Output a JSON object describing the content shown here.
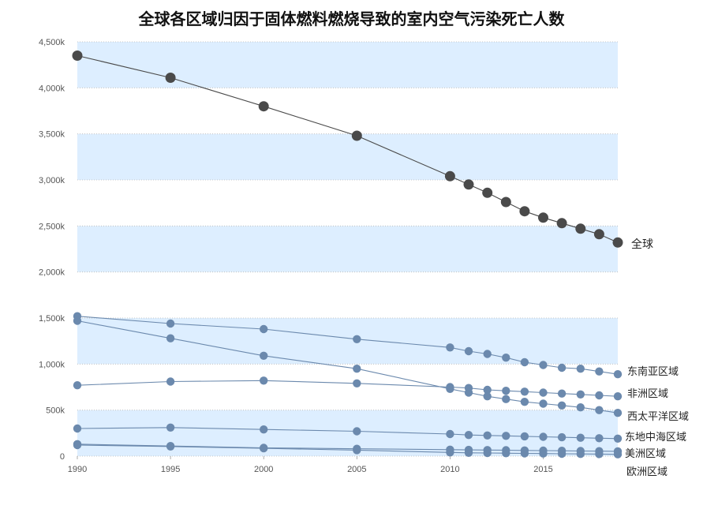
{
  "chart_data": {
    "type": "line",
    "title": "全球各区域归因于固体燃料燃烧导致的室内空气污染死亡人数",
    "xlabel": "",
    "ylabel": "",
    "x": [
      1990,
      1995,
      2000,
      2005,
      2010,
      2011,
      2012,
      2013,
      2014,
      2015,
      2016,
      2017,
      2018,
      2019
    ],
    "xticks": [
      1990,
      1995,
      2000,
      2005,
      2010,
      2015
    ],
    "xtick_labels": [
      "1990",
      "1995",
      "2000",
      "2005",
      "2010",
      "2015"
    ],
    "xlim": [
      1990,
      2019
    ],
    "ylim": [
      0,
      4500000
    ],
    "yticks": [
      0,
      500000,
      1000000,
      1500000,
      2000000,
      2500000,
      3000000,
      3500000,
      4000000,
      4500000
    ],
    "ytick_labels": [
      "0",
      "500k",
      "1,000k",
      "1,500k",
      "2,000k",
      "2,500k",
      "3,000k",
      "3,500k",
      "4,000k",
      "4,500k"
    ],
    "banded_background": true,
    "band_color": "#ddeeff",
    "grid": "horizontal-dotted",
    "series": [
      {
        "name": "全球",
        "color": "#4a4a4a",
        "values": [
          4350000,
          4110000,
          3800000,
          3480000,
          3040000,
          2950000,
          2860000,
          2760000,
          2660000,
          2590000,
          2530000,
          2470000,
          2410000,
          2320000
        ]
      },
      {
        "name": "东南亚区域",
        "color": "#6b89ad",
        "values": [
          1520000,
          1440000,
          1380000,
          1270000,
          1180000,
          1140000,
          1110000,
          1070000,
          1020000,
          990000,
          960000,
          950000,
          920000,
          890000
        ]
      },
      {
        "name": "非洲区域",
        "color": "#6b89ad",
        "values": [
          770000,
          810000,
          820000,
          790000,
          750000,
          740000,
          720000,
          710000,
          700000,
          690000,
          680000,
          670000,
          660000,
          650000
        ]
      },
      {
        "name": "西太平洋区域",
        "color": "#6b89ad",
        "values": [
          1470000,
          1280000,
          1090000,
          950000,
          730000,
          690000,
          650000,
          620000,
          590000,
          570000,
          550000,
          530000,
          500000,
          470000
        ]
      },
      {
        "name": "东地中海区域",
        "color": "#6b89ad",
        "values": [
          300000,
          310000,
          290000,
          270000,
          240000,
          230000,
          225000,
          220000,
          215000,
          210000,
          205000,
          200000,
          195000,
          190000
        ]
      },
      {
        "name": "美洲区域",
        "color": "#6b89ad",
        "values": [
          130000,
          110000,
          90000,
          80000,
          70000,
          68000,
          66000,
          64000,
          62000,
          60000,
          58000,
          56000,
          54000,
          52000
        ]
      },
      {
        "name": "欧洲区域",
        "color": "#6b89ad",
        "values": [
          120000,
          105000,
          85000,
          65000,
          40000,
          36000,
          34000,
          32000,
          30000,
          28000,
          26000,
          24000,
          22000,
          20000
        ]
      }
    ]
  }
}
